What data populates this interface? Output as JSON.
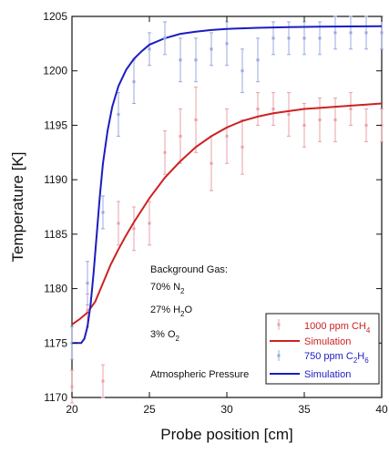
{
  "chart_data": {
    "type": "scatter",
    "title": "",
    "xlabel": "Probe position [cm]",
    "ylabel": "Temperature [K]",
    "xlim": [
      20,
      40
    ],
    "ylim": [
      1170,
      1205
    ],
    "xticks": [
      20,
      25,
      30,
      35,
      40
    ],
    "yticks": [
      1170,
      1175,
      1180,
      1185,
      1190,
      1195,
      1200,
      1205
    ],
    "grid": false,
    "legend_position": "bottom-right",
    "colors": {
      "ch4_data": "#e8a0a8",
      "ch4_sim": "#cc2222",
      "c2h6_data": "#98a8e0",
      "c2h6_sim": "#1c1cc0"
    },
    "series": [
      {
        "key": "ch4_data",
        "name": "1000 ppm CH4",
        "kind": "points",
        "x": [
          20,
          21,
          22,
          23,
          24,
          25,
          26,
          27,
          28,
          29,
          30,
          31,
          32,
          33,
          34,
          35,
          36,
          37,
          38,
          39,
          40
        ],
        "y": [
          1171,
          1178,
          1171.5,
          1186,
          1185.5,
          1186,
          1192.5,
          1194,
          1195.5,
          1191.5,
          1194,
          1193,
          1196.5,
          1196.5,
          1196,
          1195,
          1195.5,
          1195.5,
          1196.5,
          1195,
          1195
        ],
        "err": [
          1.5,
          1.5,
          1.5,
          2,
          2,
          2,
          2,
          2.5,
          3,
          2.5,
          2.5,
          2.5,
          1.5,
          1.5,
          2,
          2,
          2,
          2,
          1.5,
          1.5,
          1.5
        ]
      },
      {
        "key": "ch4_sim",
        "name": "Simulation",
        "kind": "line",
        "x": [
          20,
          20.5,
          21,
          21.5,
          22,
          22.5,
          23,
          23.5,
          24,
          25,
          26,
          27,
          28,
          29,
          30,
          31,
          32,
          33,
          34,
          35,
          36,
          37,
          38,
          39,
          40
        ],
        "y": [
          1176.7,
          1177.2,
          1177.8,
          1178.8,
          1180.5,
          1182.2,
          1183.6,
          1184.9,
          1186.1,
          1188.3,
          1190.2,
          1191.7,
          1193,
          1194,
          1194.8,
          1195.4,
          1195.8,
          1196.1,
          1196.3,
          1196.5,
          1196.6,
          1196.7,
          1196.8,
          1196.9,
          1197
        ]
      },
      {
        "key": "c2h6_data",
        "name": "750 ppm C2H6",
        "kind": "points",
        "x": [
          20,
          21,
          22,
          23,
          24,
          25,
          26,
          27,
          28,
          29,
          30,
          31,
          32,
          33,
          34,
          35,
          36,
          37,
          38,
          39,
          40
        ],
        "y": [
          1175,
          1180.5,
          1187,
          1196,
          1199,
          1202,
          1203,
          1201,
          1201,
          1202,
          1202.5,
          1200,
          1201,
          1203,
          1203,
          1203,
          1203,
          1203.5,
          1203.5,
          1203.5,
          1203.5
        ],
        "err": [
          1.5,
          2,
          1.5,
          2,
          2,
          1.5,
          1.5,
          2,
          2,
          1.5,
          2,
          2,
          2,
          1.5,
          1.5,
          1.5,
          1.5,
          1.5,
          1.5,
          1.5,
          1.5
        ]
      },
      {
        "key": "c2h6_sim",
        "name": "Simulation",
        "kind": "line",
        "x": [
          20,
          20.6,
          20.8,
          21,
          21.2,
          21.4,
          21.6,
          21.8,
          22,
          22.3,
          22.6,
          23,
          23.5,
          24,
          24.5,
          25,
          26,
          27,
          28,
          29,
          30,
          32,
          34,
          36,
          38,
          40
        ],
        "y": [
          1175,
          1175,
          1175.4,
          1176.5,
          1178.5,
          1181.5,
          1185,
          1188.5,
          1191.5,
          1194.5,
          1196.7,
          1198.6,
          1200.1,
          1201.1,
          1201.8,
          1202.4,
          1203,
          1203.4,
          1203.6,
          1203.75,
          1203.85,
          1203.95,
          1204.02,
          1204.06,
          1204.08,
          1204.1
        ]
      }
    ],
    "annotations": {
      "background_gas": "Background Gas:",
      "n2_pre": "70% N",
      "n2_sub": "2",
      "h2o_pre": "27% H",
      "h2o_sub": "2",
      "h2o_post": "O",
      "o2_pre": "3% O",
      "o2_sub": "2",
      "pressure": "Atmospheric Pressure"
    },
    "legend": [
      {
        "key": "ch4_data",
        "type": "point",
        "text": "1000 ppm CH",
        "sub": "4"
      },
      {
        "key": "ch4_sim",
        "type": "line",
        "text": "Simulation"
      },
      {
        "key": "c2h6_data",
        "type": "point",
        "text": "750 ppm C",
        "sub": "2",
        "text2": "H",
        "sub2": "6"
      },
      {
        "key": "c2h6_sim",
        "type": "line",
        "text": "Simulation"
      }
    ]
  }
}
